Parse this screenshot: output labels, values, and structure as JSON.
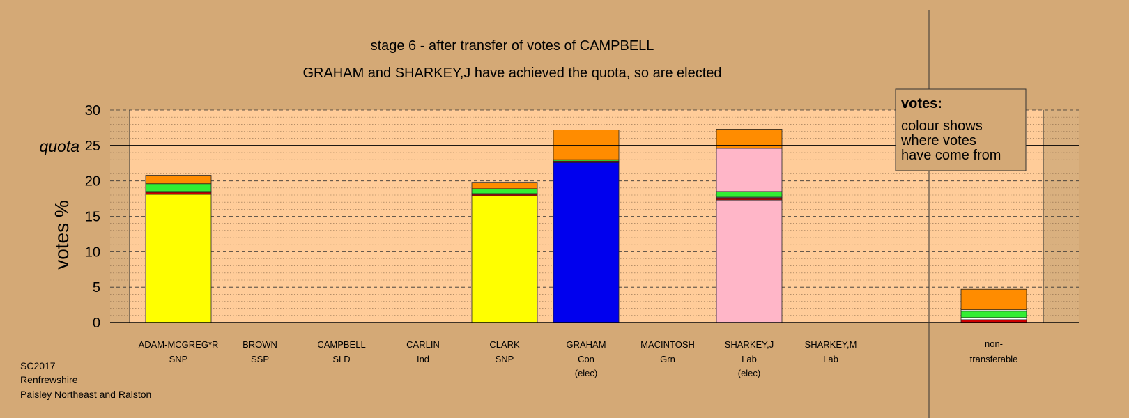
{
  "chart_data": {
    "type": "bar",
    "stacked": true,
    "title": "stage 6 - after transfer of votes of CAMPBELL",
    "subtitle": "GRAHAM and SHARKEY,J have achieved the quota, so are elected",
    "ylabel": "votes %",
    "ylim": [
      0,
      30
    ],
    "yticks": [
      0,
      5,
      10,
      15,
      20,
      25,
      30
    ],
    "quota": 25,
    "quota_label": "quota",
    "grid": true,
    "colors": {
      "background": "#D4A976",
      "plot": "#FFCC99",
      "yellow": "#FFFF00",
      "blue": "#0000EE",
      "pink": "#FFB6C8",
      "orange": "#FF8C00",
      "green": "#33EE33",
      "red": "#CC0000",
      "white": "#FFFFFF"
    },
    "categories": [
      {
        "name": "ADAM-MCGREG*R",
        "party": "SNP",
        "status": "",
        "segments": [
          {
            "color": "yellow",
            "value": 18.1
          },
          {
            "color": "red",
            "value": 0.3
          },
          {
            "color": "white",
            "value": 0.1
          },
          {
            "color": "green",
            "value": 1.1
          },
          {
            "color": "orange",
            "value": 1.2
          }
        ]
      },
      {
        "name": "BROWN",
        "party": "SSP",
        "status": "",
        "segments": []
      },
      {
        "name": "CAMPBELL",
        "party": "SLD",
        "status": "",
        "segments": []
      },
      {
        "name": "CARLIN",
        "party": "Ind",
        "status": "",
        "segments": []
      },
      {
        "name": "CLARK",
        "party": "SNP",
        "status": "",
        "segments": [
          {
            "color": "yellow",
            "value": 17.9
          },
          {
            "color": "red",
            "value": 0.2
          },
          {
            "color": "white",
            "value": 0.1
          },
          {
            "color": "green",
            "value": 0.7
          },
          {
            "color": "orange",
            "value": 0.9
          }
        ]
      },
      {
        "name": "GRAHAM",
        "party": "Con",
        "status": "(elec)",
        "segments": [
          {
            "color": "blue",
            "value": 22.6
          },
          {
            "color": "red",
            "value": 0.2
          },
          {
            "color": "green",
            "value": 0.2
          },
          {
            "color": "orange",
            "value": 4.2
          }
        ]
      },
      {
        "name": "MACINTOSH",
        "party": "Grn",
        "status": "",
        "segments": []
      },
      {
        "name": "SHARKEY,J",
        "party": "Lab",
        "status": "(elec)",
        "segments": [
          {
            "color": "pink",
            "value": 17.3
          },
          {
            "color": "red",
            "value": 0.3
          },
          {
            "color": "white",
            "value": 0.1
          },
          {
            "color": "green",
            "value": 0.8
          },
          {
            "color": "pink",
            "value": 6.1
          },
          {
            "color": "orange",
            "value": 2.7
          }
        ]
      },
      {
        "name": "SHARKEY,M",
        "party": "Lab",
        "status": "",
        "segments": []
      }
    ],
    "nontransferable": {
      "label_line1": "non-",
      "label_line2": "transferable",
      "segments": [
        {
          "color": "red",
          "value": 0.4
        },
        {
          "color": "white",
          "value": 0.3
        },
        {
          "color": "green",
          "value": 0.9
        },
        {
          "color": "white",
          "value": 0.2
        },
        {
          "color": "orange",
          "value": 2.9
        }
      ]
    },
    "legend": {
      "title": "votes:",
      "lines": [
        "colour shows",
        "where votes",
        "have come from"
      ],
      "position": "top-right"
    }
  },
  "footer": {
    "line1": "SC2017",
    "line2": "Renfrewshire",
    "line3": "Paisley Northeast and Ralston"
  }
}
